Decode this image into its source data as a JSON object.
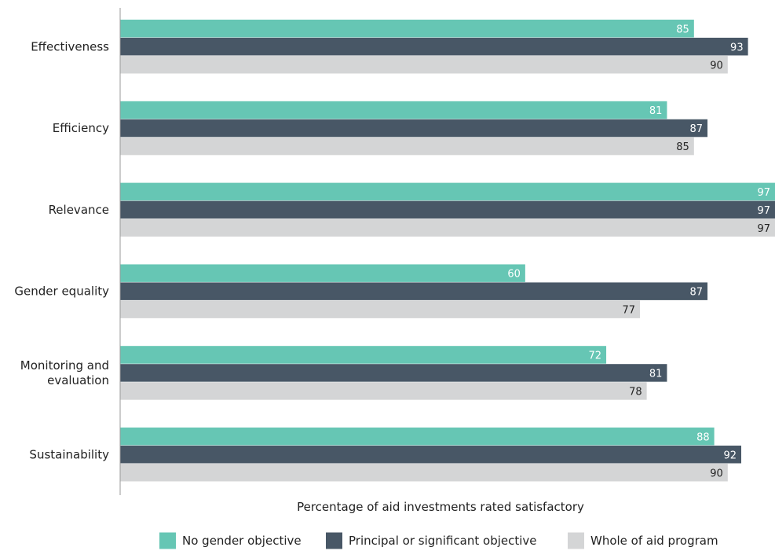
{
  "chart_data": {
    "type": "bar",
    "orientation": "horizontal",
    "categories": [
      [
        "Effectiveness"
      ],
      [
        "Efficiency"
      ],
      [
        "Relevance"
      ],
      [
        "Gender equality"
      ],
      [
        "Monitoring and",
        "evaluation"
      ],
      [
        "Sustainability"
      ]
    ],
    "series": [
      {
        "name": "No gender objective",
        "color": "#66c6b4",
        "label_color": "#ffffff",
        "values": [
          85,
          81,
          97,
          60,
          72,
          88
        ]
      },
      {
        "name": "Principal or significant objective",
        "color": "#485766",
        "label_color": "#ffffff",
        "values": [
          93,
          87,
          97,
          87,
          81,
          92
        ]
      },
      {
        "name": "Whole of aid program",
        "color": "#d4d5d6",
        "label_color": "#222222",
        "values": [
          90,
          85,
          97,
          77,
          78,
          90
        ]
      }
    ],
    "xlabel": "Percentage of aid investments rated satisfactory",
    "xlim": [
      0,
      97
    ],
    "grid": false,
    "data_labels": true,
    "legend_position": "bottom"
  }
}
